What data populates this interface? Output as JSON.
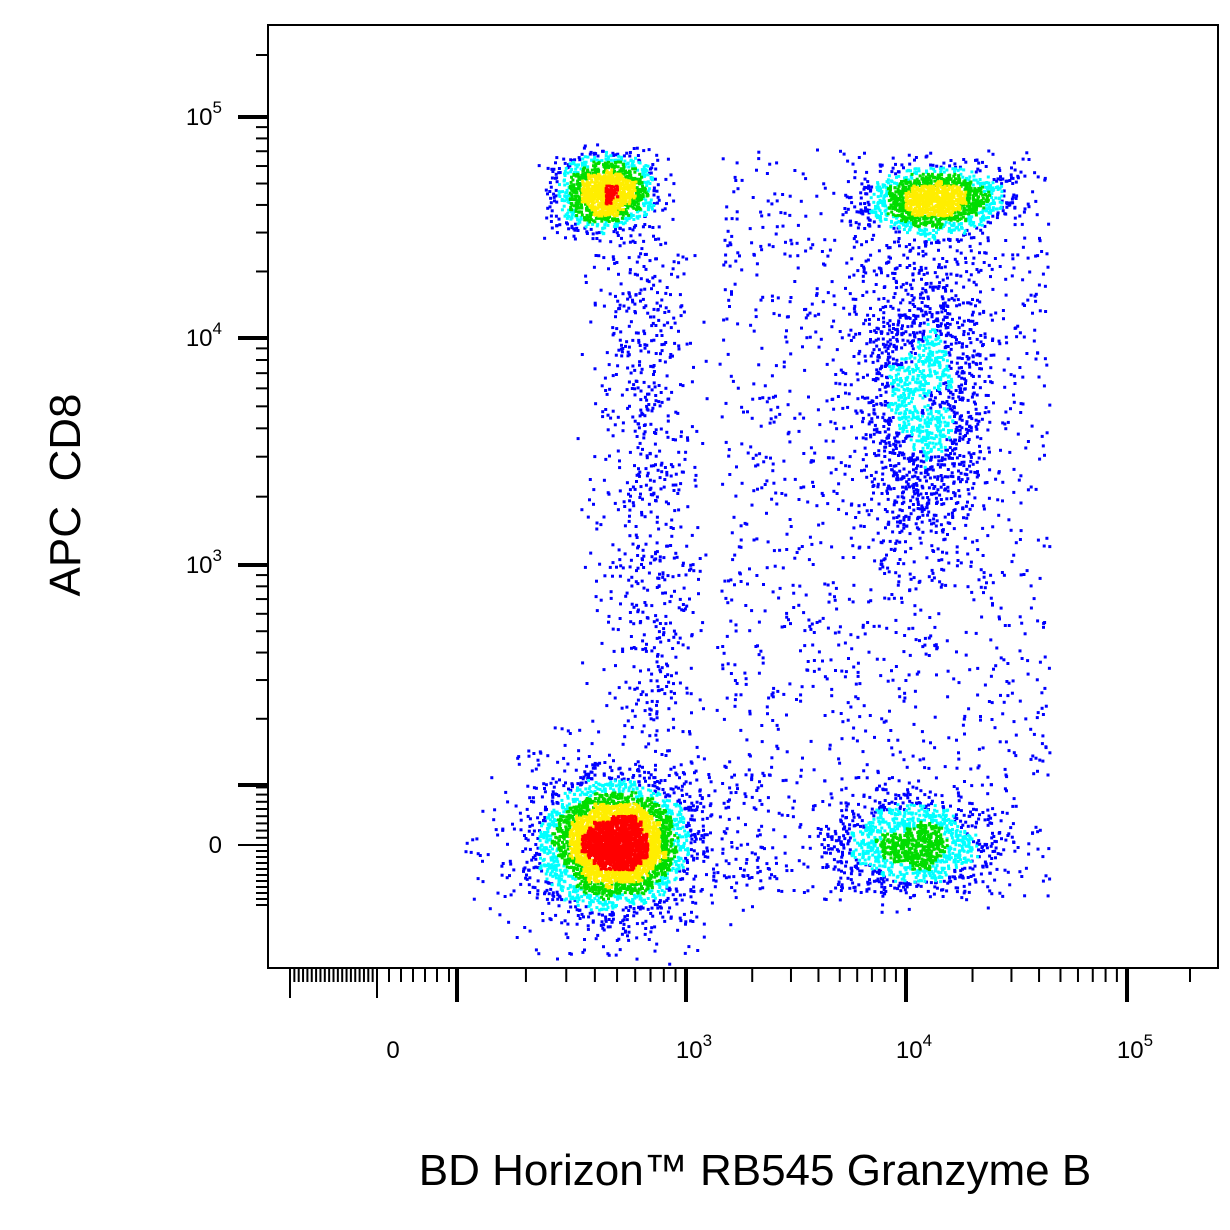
{
  "chart_data": {
    "type": "scatter",
    "subtype": "flow-cytometry-pseudocolor-dot-plot",
    "xlabel": "BD Horizon™ RB545 Granzyme B",
    "ylabel": "APC  CD8",
    "x_scale": "biexponential",
    "y_scale": "biexponential",
    "xlim": [
      -300,
      200000
    ],
    "ylim": [
      -120,
      200000
    ],
    "x_ticks": [
      {
        "value": 0,
        "base": "0",
        "exp": ""
      },
      {
        "value": 1000,
        "base": "10",
        "exp": "3"
      },
      {
        "value": 10000,
        "base": "10",
        "exp": "4"
      },
      {
        "value": 100000,
        "base": "10",
        "exp": "5"
      }
    ],
    "y_ticks": [
      {
        "value": 0,
        "base": "0",
        "exp": ""
      },
      {
        "value": 1000,
        "base": "10",
        "exp": "3"
      },
      {
        "value": 10000,
        "base": "10",
        "exp": "4"
      },
      {
        "value": 100000,
        "base": "10",
        "exp": "5"
      }
    ],
    "grid": false,
    "legend": "none",
    "density_colors": [
      "#0000ff",
      "#00ffff",
      "#00dd00",
      "#ffee00",
      "#ff0000"
    ],
    "populations": [
      {
        "label": "",
        "x_center": 500,
        "y_center": 0,
        "relative_density": 1.0
      },
      {
        "label": "",
        "x_center": 450,
        "y_center": 45000,
        "relative_density": 0.55
      },
      {
        "label": "",
        "x_center": 14000,
        "y_center": 42000,
        "relative_density": 0.55
      },
      {
        "label": "",
        "x_center": 11000,
        "y_center": 0,
        "relative_density": 0.4
      },
      {
        "label": "",
        "x_center": 12000,
        "y_center": 5000,
        "relative_density": 0.3
      }
    ]
  }
}
